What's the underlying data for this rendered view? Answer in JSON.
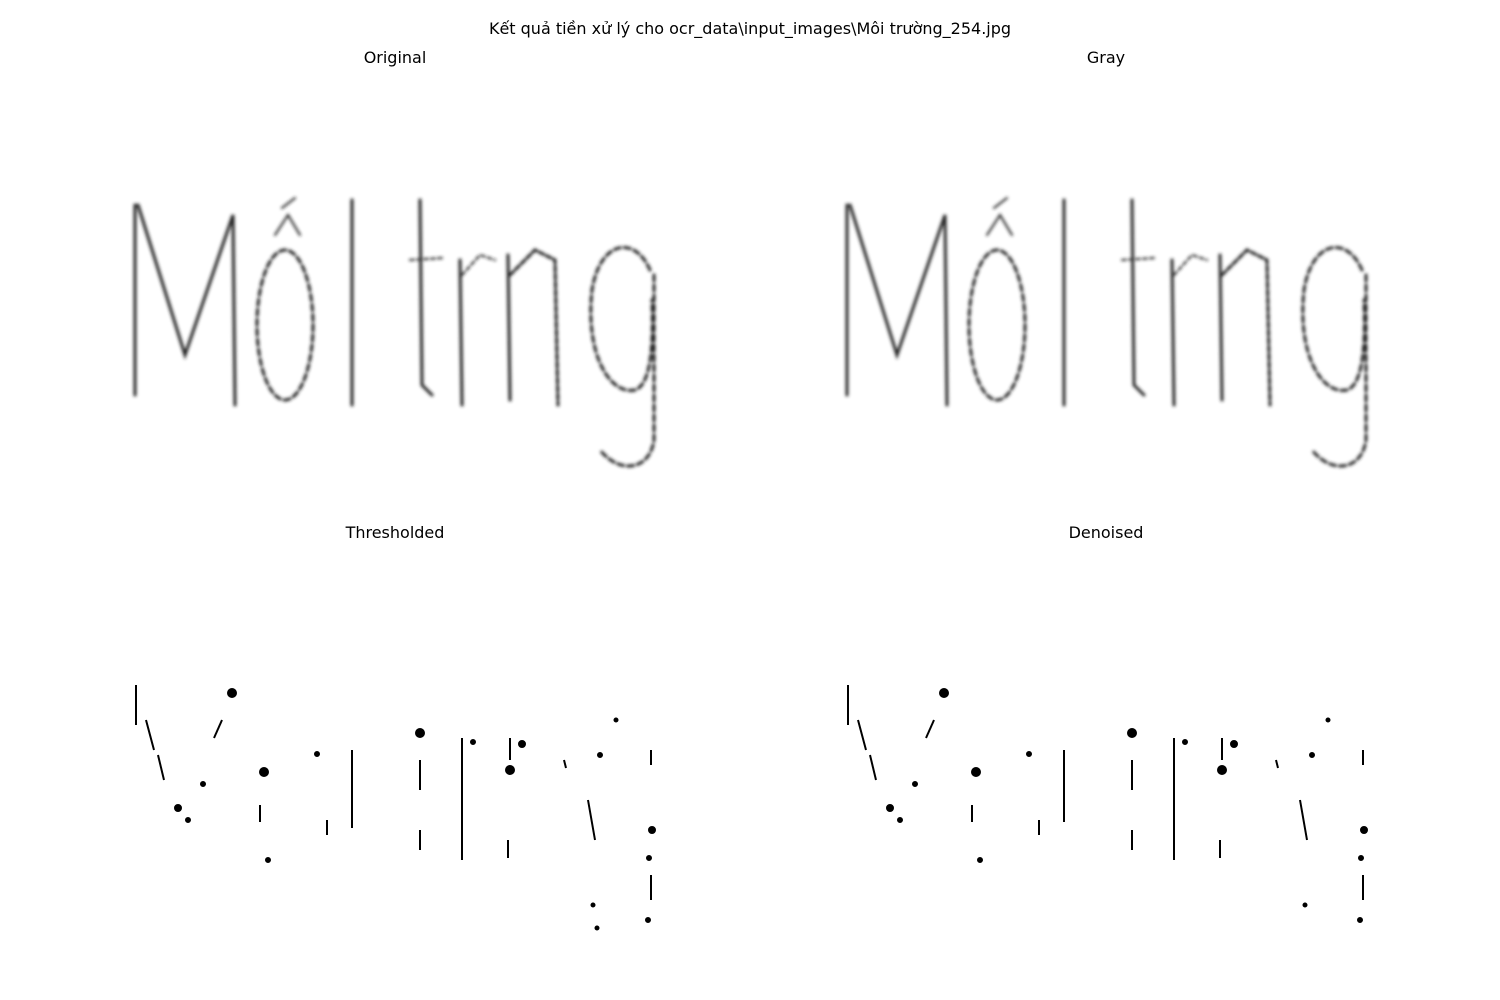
{
  "figure": {
    "suptitle": "Kết quả tiền xử lý cho ocr_data\\input_images\\Môi trường_254.jpg"
  },
  "panels": [
    {
      "title": "Original"
    },
    {
      "title": "Gray"
    },
    {
      "title": "Thresholded"
    },
    {
      "title": "Denoised"
    }
  ],
  "image_content": {
    "word": "Môi trng"
  },
  "colors": {
    "background": "#ffffff",
    "stroke": "#222222",
    "text": "#000000"
  }
}
